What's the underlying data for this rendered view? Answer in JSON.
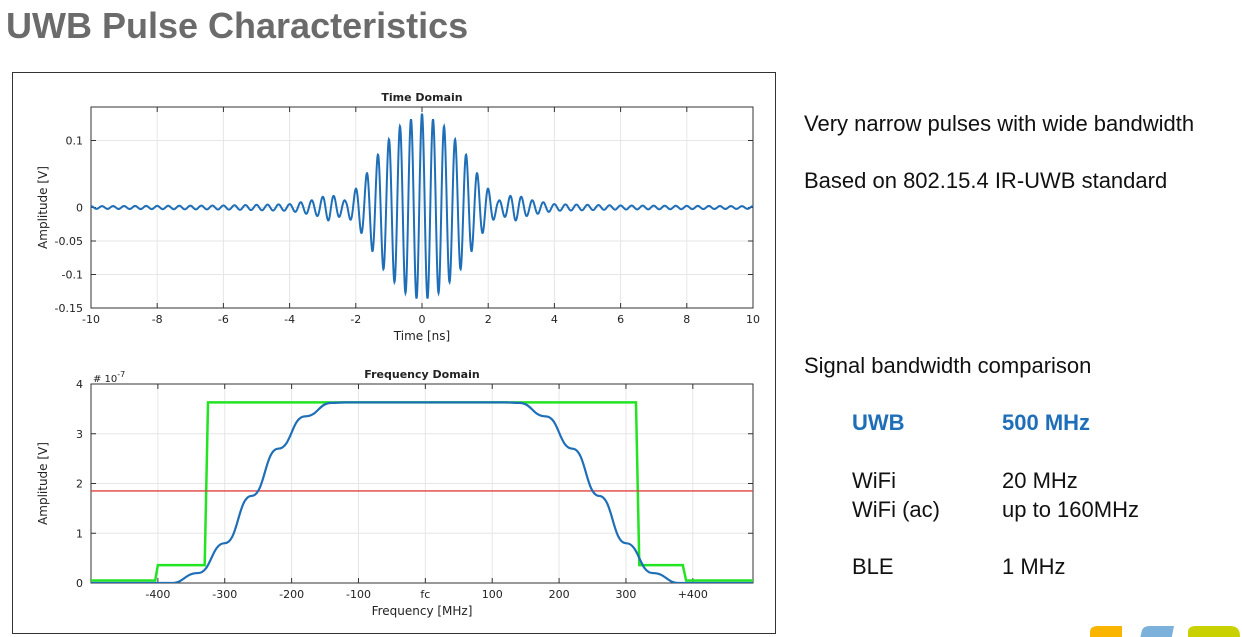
{
  "slide": {
    "title": "UWB Pulse Characteristics"
  },
  "side_text": {
    "bullet1": "Very narrow pulses with wide bandwidth",
    "bullet2": "Based on 802.15.4 IR-UWB standard",
    "comparison_heading": "Signal bandwidth comparison",
    "rows": [
      {
        "name": "UWB",
        "value": "500 MHz",
        "highlight": true
      },
      {
        "name": "WiFi",
        "value": "20 MHz",
        "highlight": false
      },
      {
        "name": "WiFi (ac)",
        "value": "up to 160MHz",
        "highlight": false
      },
      {
        "name": "BLE",
        "value": "1 MHz",
        "highlight": false
      }
    ],
    "highlight_color": "#1f6fb8"
  },
  "colors": {
    "pulse": "#1f6fb8",
    "mask": "#22e422",
    "threshold": "#e04040",
    "grid": "#e6e6e6"
  },
  "chart_data": [
    {
      "type": "line",
      "title": "Time Domain",
      "xlabel": "Time [ns]",
      "ylabel": "Amplitude [V]",
      "xlim": [
        -10,
        10
      ],
      "ylim": [
        -0.15,
        0.15
      ],
      "xticks": [
        -10,
        -8,
        -6,
        -4,
        -2,
        0,
        2,
        4,
        6,
        8,
        10
      ],
      "xtick_labels": [
        "-10",
        "-8",
        "-6",
        "-4",
        "-2",
        "0",
        "2",
        "4",
        "6",
        "8",
        "10"
      ],
      "yticks": [
        0.1,
        0,
        -0.05,
        -0.1,
        -0.15
      ],
      "ytick_labels": [
        "0.1",
        "0",
        "-0.05",
        "-0.1",
        "-0.15"
      ],
      "grid": true,
      "series": [
        {
          "peak_amplitude": 0.14,
          "carrier_cycles_per_ns": 3.0,
          "envelope": [
            [
              -10,
              0.002
            ],
            [
              -6,
              0.003
            ],
            [
              -4,
              0.005
            ],
            [
              -3.2,
              0.012
            ],
            [
              -2.8,
              0.02
            ],
            [
              -2.3,
              0.01
            ],
            [
              -1.8,
              0.04
            ],
            [
              -1.2,
              0.09
            ],
            [
              -0.6,
              0.125
            ],
            [
              0,
              0.14
            ],
            [
              0.6,
              0.125
            ],
            [
              1.2,
              0.09
            ],
            [
              1.8,
              0.04
            ],
            [
              2.3,
              0.01
            ],
            [
              2.8,
              0.02
            ],
            [
              3.2,
              0.012
            ],
            [
              4,
              0.005
            ],
            [
              6,
              0.003
            ],
            [
              10,
              0.002
            ]
          ]
        }
      ]
    },
    {
      "type": "line",
      "title": "Frequency Domain",
      "xlabel": "Frequency [MHz]",
      "ylabel": "Amplitude [V]",
      "scale_label": "# 10",
      "scale_exponent": "-7",
      "xlim": [
        -500,
        490
      ],
      "ylim": [
        0,
        4
      ],
      "xticks": [
        -400,
        -300,
        -200,
        -100,
        0,
        100,
        200,
        300,
        400
      ],
      "xtick_labels": [
        "-400",
        "-300",
        "-200",
        "-100",
        "fc",
        "100",
        "200",
        "300",
        "+400"
      ],
      "yticks": [
        4,
        3,
        2,
        1,
        0
      ],
      "ytick_labels": [
        "4",
        "3",
        "2",
        "1",
        "0"
      ],
      "grid": true,
      "series": [
        {
          "role": "mask",
          "x": [
            -500,
            -404,
            -400,
            -330,
            -325,
            315,
            320,
            385,
            390,
            490
          ],
          "y": [
            0.05,
            0.05,
            0.36,
            0.36,
            3.63,
            3.63,
            0.36,
            0.36,
            0.05,
            0.05
          ]
        },
        {
          "role": "threshold",
          "x": [
            -500,
            490
          ],
          "y": [
            1.85,
            1.85
          ]
        },
        {
          "role": "pulse",
          "x": [
            -500,
            -380,
            -340,
            -300,
            -260,
            -220,
            -180,
            -140,
            -120,
            120,
            140,
            180,
            220,
            260,
            300,
            340,
            380,
            490
          ],
          "y": [
            0,
            0,
            0.2,
            0.8,
            1.75,
            2.7,
            3.35,
            3.62,
            3.63,
            3.63,
            3.62,
            3.35,
            2.7,
            1.75,
            0.8,
            0.2,
            0,
            0
          ]
        }
      ]
    }
  ]
}
